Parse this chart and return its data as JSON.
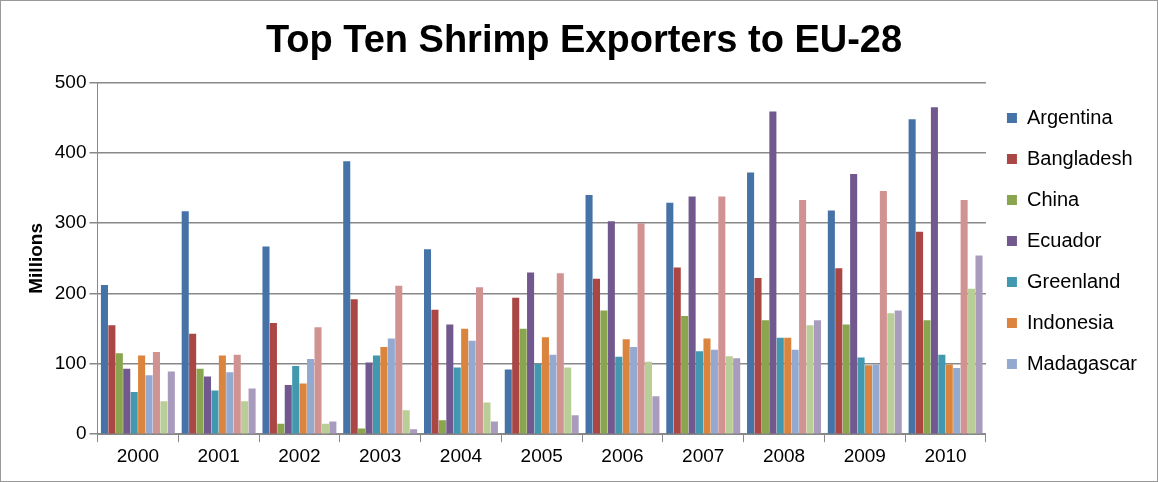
{
  "chart_data": {
    "type": "bar",
    "title": "Top Ten Shrimp Exporters to EU-28",
    "ylabel": "Millions",
    "categories": [
      "2000",
      "2001",
      "2002",
      "2003",
      "2004",
      "2005",
      "2006",
      "2007",
      "2008",
      "2009",
      "2010"
    ],
    "series": [
      {
        "name": "Argentina",
        "color": "#4572a7",
        "values": [
          212,
          317,
          267,
          388,
          263,
          92,
          340,
          329,
          372,
          318,
          448
        ]
      },
      {
        "name": "Bangladesh",
        "color": "#aa4643",
        "values": [
          155,
          143,
          158,
          192,
          177,
          194,
          221,
          237,
          222,
          236,
          288
        ]
      },
      {
        "name": "China",
        "color": "#89a54e",
        "values": [
          115,
          93,
          15,
          8,
          20,
          150,
          176,
          168,
          162,
          156,
          162
        ]
      },
      {
        "name": "Ecuador",
        "color": "#71588f",
        "values": [
          93,
          82,
          70,
          102,
          156,
          230,
          303,
          338,
          459,
          370,
          465
        ]
      },
      {
        "name": "Greenland",
        "color": "#4198af",
        "values": [
          60,
          62,
          97,
          112,
          95,
          100,
          110,
          118,
          137,
          109,
          113
        ]
      },
      {
        "name": "Indonesia",
        "color": "#db843d",
        "values": [
          112,
          112,
          72,
          124,
          150,
          138,
          135,
          136,
          137,
          98,
          99
        ]
      },
      {
        "name": "Madagascar",
        "color": "#93a9cf",
        "values": [
          84,
          88,
          107,
          136,
          133,
          113,
          124,
          120,
          120,
          99,
          94
        ]
      },
      {
        "color": "#d19392",
        "values": [
          117,
          113,
          152,
          211,
          209,
          229,
          300,
          338,
          333,
          346,
          333
        ]
      },
      {
        "color": "#b9cd96",
        "values": [
          47,
          47,
          15,
          34,
          45,
          95,
          103,
          111,
          155,
          172,
          207
        ]
      },
      {
        "color": "#a99bbd",
        "values": [
          89,
          65,
          18,
          7,
          18,
          27,
          54,
          108,
          162,
          176,
          254
        ]
      }
    ],
    "ylim": [
      0,
      500
    ],
    "yticks": [
      0,
      100,
      200,
      300,
      400,
      500
    ],
    "grid": "y",
    "legend": "right"
  }
}
